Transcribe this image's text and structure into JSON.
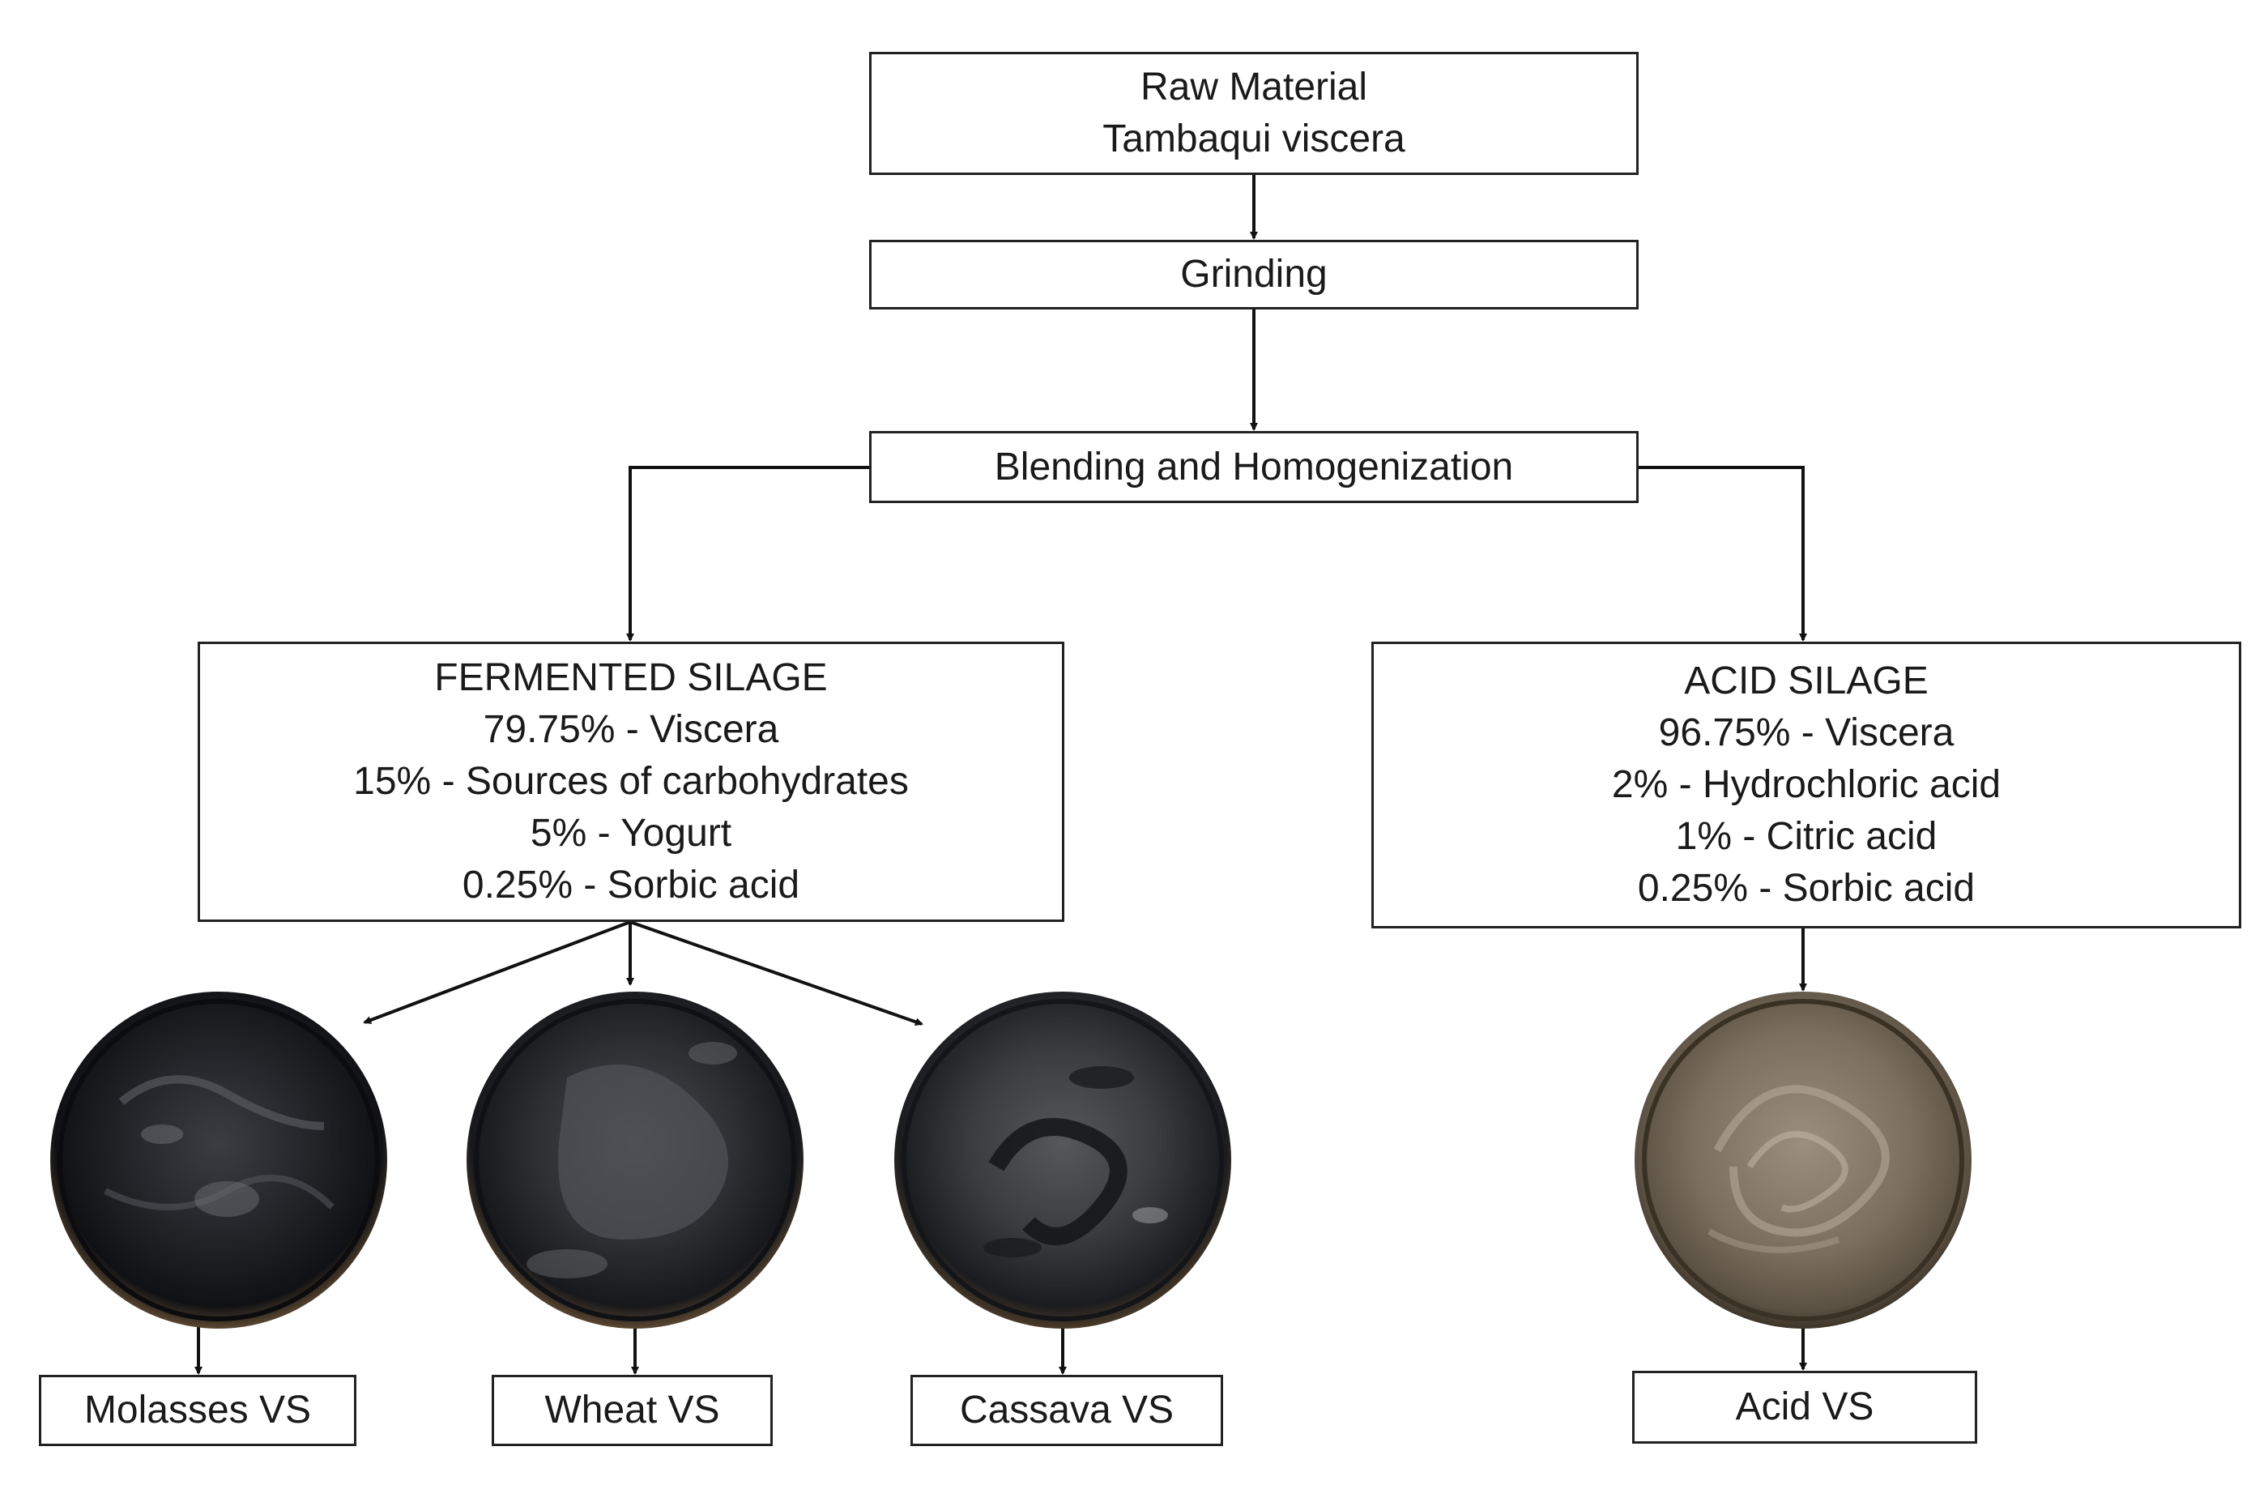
{
  "flowchart": {
    "raw_material": {
      "line1": "Raw Material",
      "line2": "Tambaqui viscera"
    },
    "grinding": "Grinding",
    "blending": "Blending and Homogenization",
    "fermented_silage": {
      "title": "FERMENTED SILAGE",
      "items": [
        "79.75% - Viscera",
        "15% - Sources of carbohydrates",
        "5% - Yogurt",
        "0.25% - Sorbic acid"
      ]
    },
    "acid_silage": {
      "title": "ACID SILAGE",
      "items": [
        "96.75% - Viscera",
        "2% - Hydrochloric acid",
        "1% - Citric acid",
        "0.25% - Sorbic acid"
      ]
    },
    "products": {
      "molasses": "Molasses VS",
      "wheat": "Wheat VS",
      "cassava": "Cassava VS",
      "acid": "Acid VS"
    }
  },
  "colors": {
    "box_border": "#222222",
    "arrow": "#111111",
    "dark_silage": "#1c1e21",
    "acid_silage": "#7a6e5d"
  }
}
